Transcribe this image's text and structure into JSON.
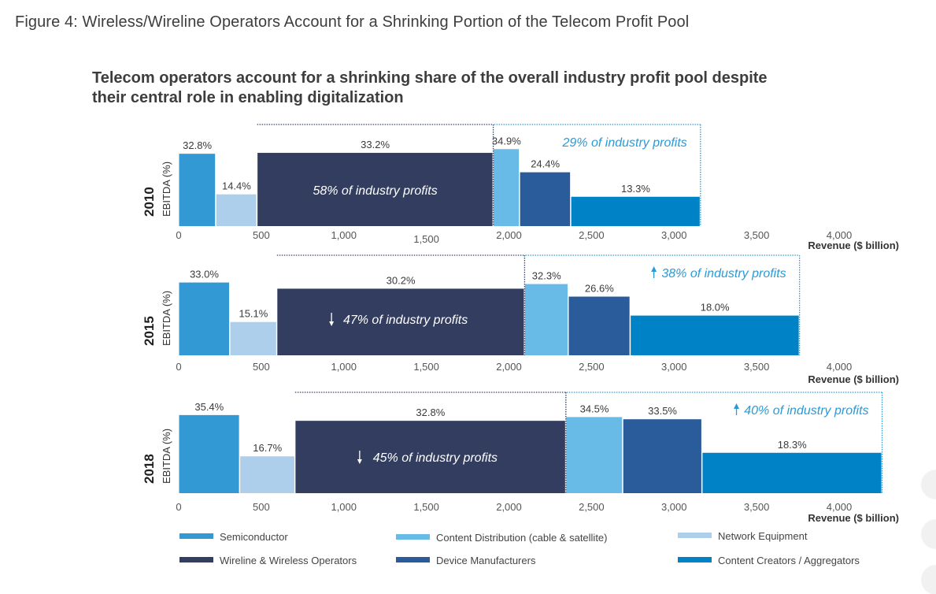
{
  "figure_title": "Figure 4: Wireless/Wireline Operators Account for a Shrinking Portion of the Telecom Profit Pool",
  "subtitle_line1": "Telecom operators account for a shrinking share of the overall industry profit pool despite",
  "subtitle_line2": "their central role in enabling digitalization",
  "colors": {
    "Semiconductor": "#3399d4",
    "Network Equipment": "#aecfec",
    "Wireline & Wireless Operators": "#323d5f",
    "Content Distribution (cable & satellite)": "#68bbe6",
    "Device Manufacturers": "#2a5b9a",
    "Content Creators / Aggregators": "#0083c6",
    "operator_box": "#3a4466",
    "other_box": "#2a9ad6",
    "other_text": "#2a9ad6",
    "label_text": "#3a3a3a"
  },
  "chart_data": {
    "type": "bar",
    "subtype": "variable-width (marimekko) bar",
    "title": "Telecom operators account for a shrinking share of the overall industry profit pool despite their central role in enabling digitalization",
    "xlabel": "Revenue ($ billion)",
    "ylabel": "EBITDA (%)",
    "xlim": [
      0,
      4000
    ],
    "ylim": [
      0,
      40
    ],
    "x_ticks": [
      "0",
      "500",
      "1,000",
      "1,500",
      "2,000",
      "2,500",
      "3,000",
      "3,500",
      "4,000"
    ],
    "legend_position": "bottom",
    "legend": [
      "Semiconductor",
      "Content Distribution (cable & satellite)",
      "Network Equipment",
      "Wireline & Wireless Operators",
      "Device Manufacturers",
      "Content Creators / Aggregators"
    ],
    "panels": [
      {
        "year": "2010",
        "segments": [
          {
            "name": "Semiconductor",
            "revenue": 225,
            "ebitda": 32.8,
            "label": "32.8%"
          },
          {
            "name": "Network Equipment",
            "revenue": 250,
            "ebitda": 14.4,
            "label": "14.4%"
          },
          {
            "name": "Wireline & Wireless Operators",
            "revenue": 1430,
            "ebitda": 33.2,
            "label": "33.2%"
          },
          {
            "name": "Content Distribution (cable & satellite)",
            "revenue": 160,
            "ebitda": 34.9,
            "label": "34.9%"
          },
          {
            "name": "Device Manufacturers",
            "revenue": 310,
            "ebitda": 24.4,
            "label": "24.4%"
          },
          {
            "name": "Content Creators / Aggregators",
            "revenue": 785,
            "ebitda": 13.3,
            "label": "13.3%"
          }
        ],
        "operator_annotation": {
          "arrow": "",
          "text": "58% of industry profits"
        },
        "other_annotation": {
          "arrow": "",
          "text": "29% of industry profits"
        }
      },
      {
        "year": "2015",
        "segments": [
          {
            "name": "Semiconductor",
            "revenue": 310,
            "ebitda": 33.0,
            "label": "33.0%"
          },
          {
            "name": "Network Equipment",
            "revenue": 285,
            "ebitda": 15.1,
            "label": "15.1%"
          },
          {
            "name": "Wireline & Wireless Operators",
            "revenue": 1500,
            "ebitda": 30.2,
            "label": "30.2%"
          },
          {
            "name": "Content Distribution (cable & satellite)",
            "revenue": 265,
            "ebitda": 32.3,
            "label": "32.3%"
          },
          {
            "name": "Device Manufacturers",
            "revenue": 375,
            "ebitda": 26.6,
            "label": "26.6%"
          },
          {
            "name": "Content Creators / Aggregators",
            "revenue": 1025,
            "ebitda": 18.0,
            "label": "18.0%"
          }
        ],
        "operator_annotation": {
          "arrow": "down",
          "text": "47% of industry profits"
        },
        "other_annotation": {
          "arrow": "up",
          "text": "38% of industry profits"
        }
      },
      {
        "year": "2018",
        "segments": [
          {
            "name": "Semiconductor",
            "revenue": 370,
            "ebitda": 35.4,
            "label": "35.4%"
          },
          {
            "name": "Network Equipment",
            "revenue": 335,
            "ebitda": 16.7,
            "label": "16.7%"
          },
          {
            "name": "Wireline & Wireless Operators",
            "revenue": 1640,
            "ebitda": 32.8,
            "label": "32.8%"
          },
          {
            "name": "Content Distribution (cable & satellite)",
            "revenue": 345,
            "ebitda": 34.5,
            "label": "34.5%"
          },
          {
            "name": "Device Manufacturers",
            "revenue": 480,
            "ebitda": 33.5,
            "label": "33.5%"
          },
          {
            "name": "Content Creators / Aggregators",
            "revenue": 1090,
            "ebitda": 18.3,
            "label": "18.3%"
          }
        ],
        "operator_annotation": {
          "arrow": "down",
          "text": "45% of industry profits"
        },
        "other_annotation": {
          "arrow": "up",
          "text": "40% of industry profits"
        }
      }
    ]
  }
}
